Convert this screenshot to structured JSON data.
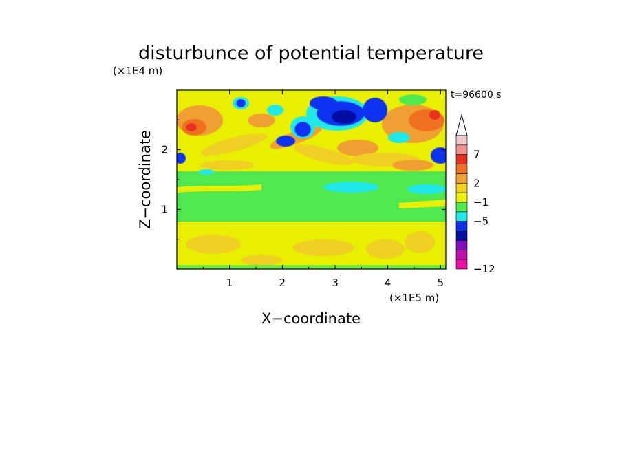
{
  "chart_data": {
    "type": "heatmap",
    "title": "disturbunce of potential temperature",
    "xlabel": "X−coordinate",
    "ylabel": "Z−coordinate",
    "x_scale_label": "(×1E5 m)",
    "y_scale_label": "(×1E4 m)",
    "time_label": "t=96600 s",
    "xlim": [
      0,
      5.1
    ],
    "ylim": [
      0,
      3.0
    ],
    "x_ticks": [
      "1",
      "2",
      "3",
      "4",
      "5"
    ],
    "y_ticks": [
      "1",
      "2"
    ],
    "colorbar": {
      "tick_labels": [
        "7",
        "2",
        "−1",
        "−5",
        "−12"
      ],
      "colors": [
        "#f0c8c8",
        "#f09090",
        "#e83020",
        "#f07020",
        "#f0a030",
        "#f0d020",
        "#e8f000",
        "#50e850",
        "#20e8e8",
        "#1030f0",
        "#0010a0",
        "#8010c0",
        "#c010b0",
        "#f010a8"
      ],
      "extend_top": true
    }
  }
}
